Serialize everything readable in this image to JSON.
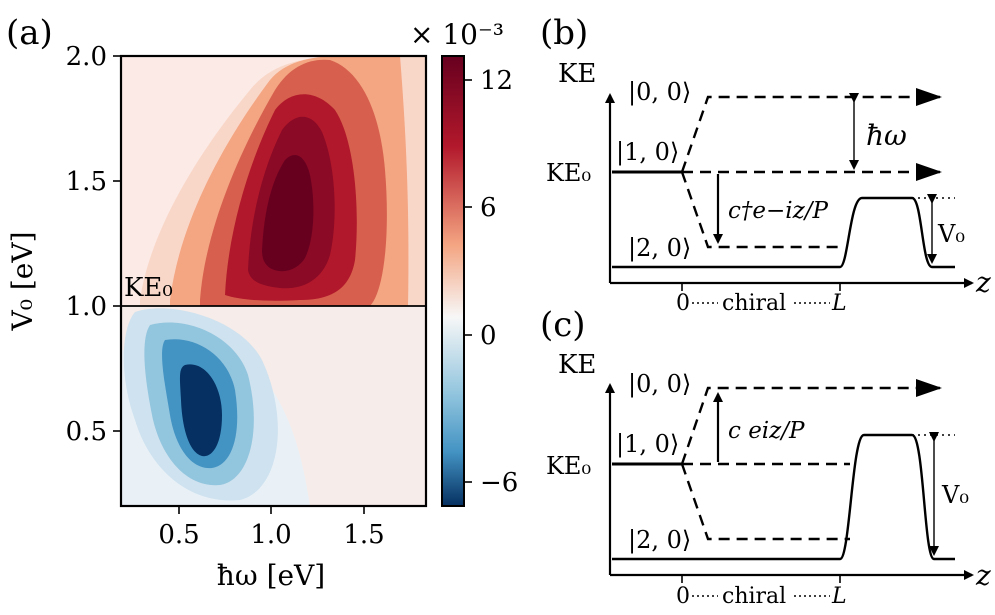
{
  "panel_a": {
    "label": "(a)",
    "xlabel": "ħω [eV]",
    "ylabel": "V₀ [eV]",
    "ke0_label": "KE₀",
    "x_ticks": [
      "0.5",
      "1.0",
      "1.5"
    ],
    "y_ticks": [
      "0.5",
      "1.0",
      "1.5",
      "2.0"
    ],
    "colorbar": {
      "multiplier": "× 10⁻³",
      "ticks": [
        "12",
        "6",
        "0",
        "−6"
      ]
    }
  },
  "panel_b": {
    "label": "(b)",
    "ke_axis": "KE",
    "ke0": "KE₀",
    "state_00": "|0, 0⟩",
    "state_10": "|1, 0⟩",
    "state_20": "|2, 0⟩",
    "hw": "ħω",
    "operator": "c†e−iz/P",
    "v0": "V₀",
    "z_axis": "z",
    "zero": "0",
    "chiral": "chiral",
    "L": "L"
  },
  "panel_c": {
    "label": "(c)",
    "ke_axis": "KE",
    "ke0": "KE₀",
    "state_00": "|0, 0⟩",
    "state_10": "|1, 0⟩",
    "state_20": "|2, 0⟩",
    "operator": "c eiz/P",
    "v0": "V₀",
    "z_axis": "z",
    "zero": "0",
    "chiral": "chiral",
    "L": "L"
  },
  "chart_data": {
    "type": "heatmap",
    "title": "",
    "xlabel": "ħω [eV]",
    "ylabel": "V₀ [eV]",
    "xlim": [
      0.2,
      1.8
    ],
    "ylim": [
      0.2,
      2.0
    ],
    "reference_line": {
      "label": "KE₀",
      "y": 1.0
    },
    "colorbar_range": [
      -8,
      13
    ],
    "colorbar_unit": "× 10⁻³",
    "features": [
      {
        "sign": "positive",
        "peak_x": 1.0,
        "peak_y": 1.35,
        "peak_value": 13
      },
      {
        "sign": "negative",
        "peak_x": 0.65,
        "peak_y": 0.6,
        "peak_value": -8
      }
    ]
  },
  "colors": {
    "max_red": "#67001f",
    "mid_red": "#d6604d",
    "zero": "#f7f7f7",
    "mid_blue": "#4393c3",
    "max_blue": "#053061"
  }
}
